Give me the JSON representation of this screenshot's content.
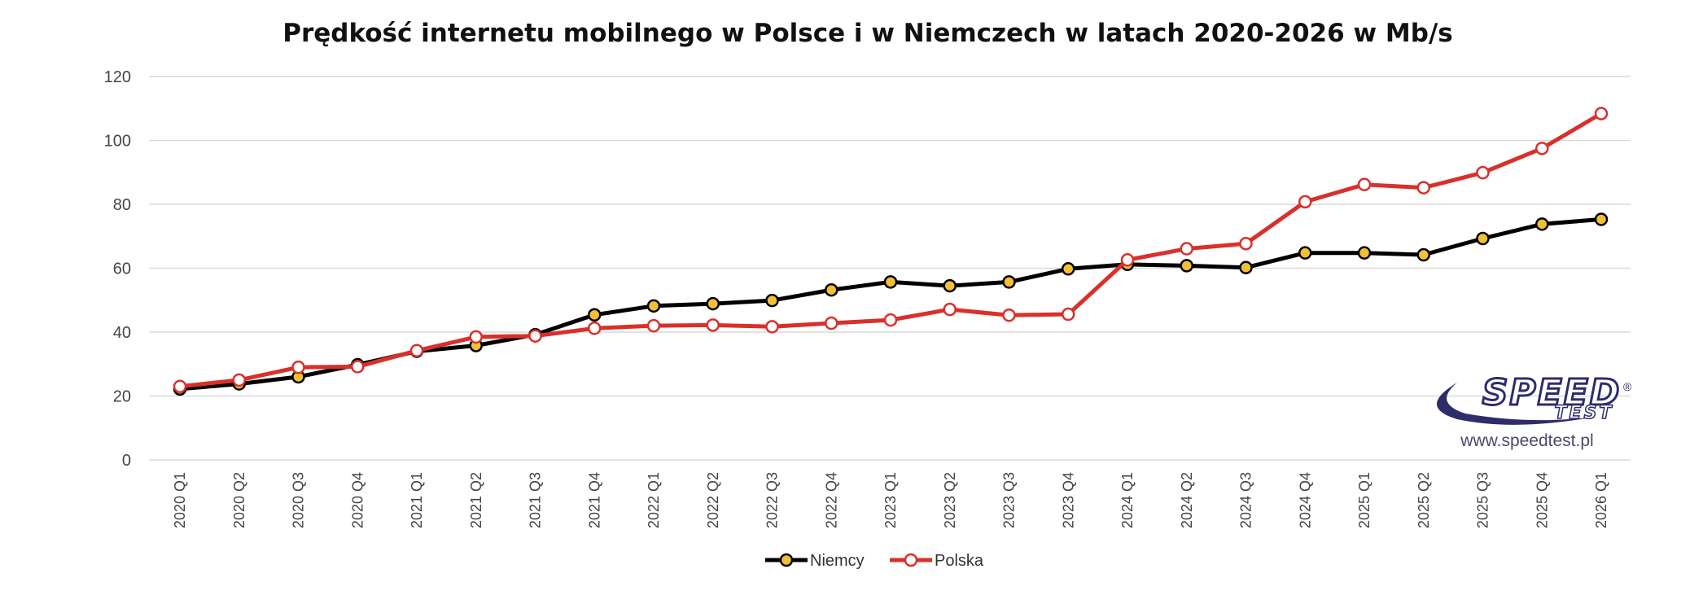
{
  "chart_data": {
    "type": "line",
    "title": "Prędkość internetu mobilnego w Polsce i w Niemczech w latach 2020-2026 w Mb/s",
    "xlabel": "",
    "ylabel": "",
    "ylim": [
      0,
      120
    ],
    "yticks": [
      0,
      20,
      40,
      60,
      80,
      100,
      120
    ],
    "grid": true,
    "legend_position": "bottom",
    "categories": [
      "2020 Q1",
      "2020 Q2",
      "2020 Q3",
      "2020 Q4",
      "2021 Q1",
      "2021 Q2",
      "2021 Q3",
      "2021 Q4",
      "2022 Q1",
      "2022 Q2",
      "2022 Q3",
      "2022 Q4",
      "2023 Q1",
      "2023 Q2",
      "2023 Q3",
      "2023 Q4",
      "2024 Q1",
      "2024 Q2",
      "2024 Q3",
      "2024 Q4",
      "2025 Q1",
      "2025 Q2",
      "2025 Q3",
      "2025 Q4",
      "2026 Q1"
    ],
    "series": [
      {
        "name": "Niemcy",
        "color": "#000000",
        "marker_fill": "#f2c037",
        "values": [
          22.2,
          23.8,
          26.0,
          29.8,
          34.0,
          35.8,
          39.2,
          45.4,
          48.2,
          48.9,
          49.9,
          53.2,
          55.7,
          54.5,
          55.7,
          59.8,
          61.2,
          60.8,
          60.2,
          64.8,
          64.8,
          64.2,
          69.3,
          73.8,
          75.3
        ]
      },
      {
        "name": "Polska",
        "color": "#d9302b",
        "marker_fill": "#ffffff",
        "values": [
          23.0,
          25.0,
          29.0,
          29.2,
          34.2,
          38.5,
          38.8,
          41.2,
          42.0,
          42.2,
          41.7,
          42.8,
          43.8,
          47.1,
          45.3,
          45.6,
          62.6,
          66.1,
          67.7,
          80.8,
          86.2,
          85.2,
          89.9,
          97.5,
          108.4
        ]
      }
    ]
  },
  "watermark": {
    "logo_text_main": "SPEED",
    "logo_text_sub": "TEST",
    "registered": "®",
    "url": "www.speedtest.pl"
  }
}
